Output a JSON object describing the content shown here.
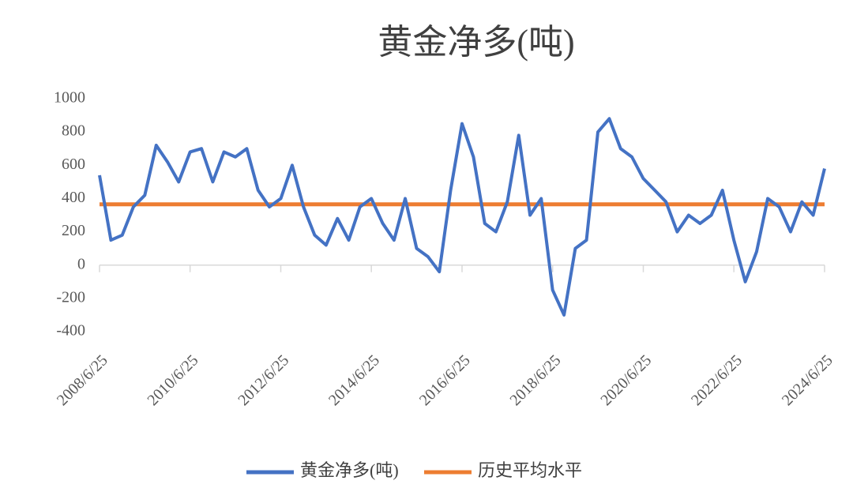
{
  "chart_data": {
    "type": "line",
    "title": "黄金净多(吨)",
    "x": [
      "2008/6/25",
      "2008/9/25",
      "2008/12/25",
      "2009/3/25",
      "2009/6/25",
      "2009/9/25",
      "2009/12/25",
      "2010/3/25",
      "2010/6/25",
      "2010/9/25",
      "2010/12/25",
      "2011/3/25",
      "2011/6/25",
      "2011/9/25",
      "2011/12/25",
      "2012/3/25",
      "2012/6/25",
      "2012/9/25",
      "2012/12/25",
      "2013/3/25",
      "2013/6/25",
      "2013/9/25",
      "2013/12/25",
      "2014/3/25",
      "2014/6/25",
      "2014/9/25",
      "2014/12/25",
      "2015/3/25",
      "2015/6/25",
      "2015/9/25",
      "2015/12/25",
      "2016/3/25",
      "2016/6/25",
      "2016/9/25",
      "2016/12/25",
      "2017/3/25",
      "2017/6/25",
      "2017/9/25",
      "2017/12/25",
      "2018/3/25",
      "2018/6/25",
      "2018/9/25",
      "2018/12/25",
      "2019/3/25",
      "2019/6/25",
      "2019/9/25",
      "2019/12/25",
      "2020/3/25",
      "2020/6/25",
      "2020/9/25",
      "2020/12/25",
      "2021/3/25",
      "2021/6/25",
      "2021/9/25",
      "2021/12/25",
      "2022/3/25",
      "2022/6/25",
      "2022/9/25",
      "2022/12/25",
      "2023/3/25",
      "2023/6/25",
      "2023/9/25",
      "2023/12/25",
      "2024/3/25",
      "2024/6/25"
    ],
    "series": [
      {
        "name": "黄金净多(吨)",
        "color": "#4472c4",
        "values": [
          540,
          150,
          180,
          350,
          420,
          720,
          620,
          500,
          680,
          700,
          500,
          680,
          650,
          700,
          450,
          350,
          400,
          600,
          350,
          180,
          120,
          280,
          150,
          350,
          400,
          250,
          150,
          400,
          100,
          50,
          -40,
          450,
          850,
          650,
          250,
          200,
          380,
          780,
          300,
          400,
          -150,
          -300,
          100,
          150,
          800,
          880,
          700,
          650,
          520,
          450,
          380,
          200,
          300,
          250,
          300,
          450,
          150,
          -100,
          80,
          400,
          350,
          200,
          380,
          300,
          580
        ]
      },
      {
        "name": "历史平均水平",
        "color": "#ed7d31",
        "values": [
          365,
          365,
          365,
          365,
          365,
          365,
          365,
          365,
          365,
          365,
          365,
          365,
          365,
          365,
          365,
          365,
          365,
          365,
          365,
          365,
          365,
          365,
          365,
          365,
          365,
          365,
          365,
          365,
          365,
          365,
          365,
          365,
          365,
          365,
          365,
          365,
          365,
          365,
          365,
          365,
          365,
          365,
          365,
          365,
          365,
          365,
          365,
          365,
          365,
          365,
          365,
          365,
          365,
          365,
          365,
          365,
          365,
          365,
          365,
          365,
          365,
          365,
          365,
          365,
          365
        ]
      }
    ],
    "xlim": [
      "2008/6/25",
      "2024/6/25"
    ],
    "xticks": [
      "2008/6/25",
      "2010/6/25",
      "2012/6/25",
      "2014/6/25",
      "2016/6/25",
      "2018/6/25",
      "2020/6/25",
      "2022/6/25",
      "2024/6/25"
    ],
    "ylim": [
      -400,
      1000
    ],
    "yticks": [
      -400,
      -200,
      0,
      200,
      400,
      600,
      800,
      1000
    ]
  }
}
